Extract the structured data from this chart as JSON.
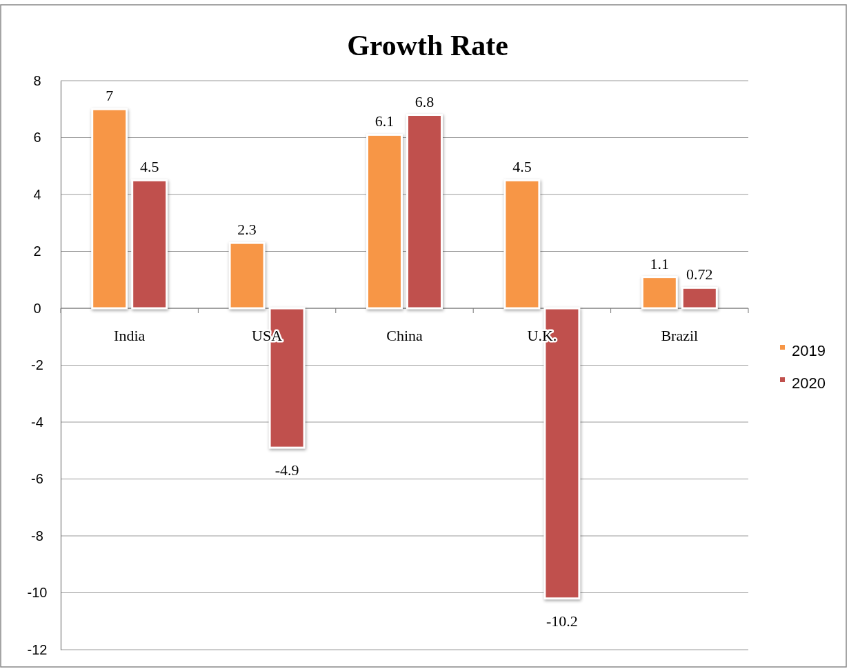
{
  "chart_data": {
    "type": "bar",
    "title": "Growth Rate",
    "categories": [
      "India",
      "USA",
      "China",
      "U.K.",
      "Brazil"
    ],
    "series": [
      {
        "name": "2019",
        "color": "#f79646",
        "values": [
          7,
          2.3,
          6.1,
          4.5,
          1.1
        ]
      },
      {
        "name": "2020",
        "color": "#c0504d",
        "values": [
          4.5,
          -4.9,
          6.8,
          -10.2,
          0.72
        ]
      }
    ],
    "ylim": [
      -12,
      8
    ],
    "yticks": [
      -12,
      -10,
      -8,
      -6,
      -4,
      -2,
      0,
      2,
      4,
      6,
      8
    ],
    "grid": "y",
    "legend": "right",
    "data_labels": true
  }
}
